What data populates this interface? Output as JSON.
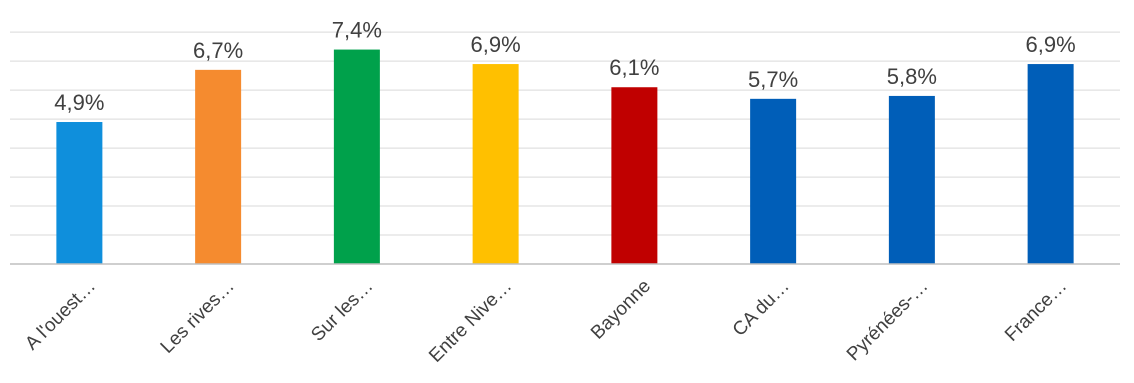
{
  "chart_data": {
    "type": "bar",
    "categories": [
      "A l'ouest…",
      "Les rives…",
      "Sur les…",
      "Entre Nive…",
      "Bayonne",
      "CA du…",
      "Pyrénées-…",
      "France…"
    ],
    "values": [
      4.9,
      6.7,
      7.4,
      6.9,
      6.1,
      5.7,
      5.8,
      6.9
    ],
    "data_labels": [
      "4,9%",
      "6,7%",
      "7,4%",
      "6,9%",
      "6,1%",
      "5,7%",
      "5,8%",
      "6,9%"
    ],
    "colors": [
      "#0f8fdc",
      "#f58b2f",
      "#00a14b",
      "#ffc000",
      "#c00000",
      "#005eb8",
      "#005eb8",
      "#005eb8"
    ],
    "ylim": [
      0,
      8.8
    ],
    "gridline_step": 1,
    "grid": true,
    "legend": "none",
    "title": "",
    "xlabel": "",
    "ylabel": ""
  }
}
